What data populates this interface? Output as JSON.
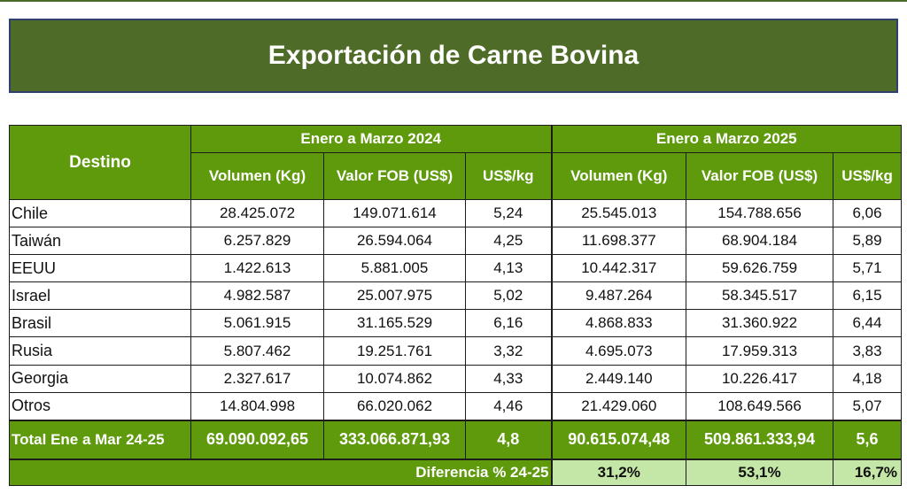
{
  "title": "Exportación de Carne Bovina",
  "headers": {
    "destino": "Destino",
    "period_2024": "Enero a Marzo 2024",
    "period_2025": "Enero a Marzo 2025",
    "vol_2024": "Volumen (Kg)",
    "fob_2024": "Valor FOB (US$)",
    "uskg_2024": "US$/kg",
    "vol_2025": "Volumen (Kg)",
    "fob_2025": "Valor FOB (US$)",
    "uskg_2025": "US$/kg"
  },
  "rows": [
    {
      "destino": "Chile",
      "vol24": "28.425.072",
      "fob24": "149.071.614",
      "uskg24": "5,24",
      "vol25": "25.545.013",
      "fob25": "154.788.656",
      "uskg25": "6,06"
    },
    {
      "destino": "Taiwán",
      "vol24": "6.257.829",
      "fob24": "26.594.064",
      "uskg24": "4,25",
      "vol25": "11.698.377",
      "fob25": "68.904.184",
      "uskg25": "5,89"
    },
    {
      "destino": "EEUU",
      "vol24": "1.422.613",
      "fob24": "5.881.005",
      "uskg24": "4,13",
      "vol25": "10.442.317",
      "fob25": "59.626.759",
      "uskg25": "5,71"
    },
    {
      "destino": "Israel",
      "vol24": "4.982.587",
      "fob24": "25.007.975",
      "uskg24": "5,02",
      "vol25": "9.487.264",
      "fob25": "58.345.517",
      "uskg25": "6,15"
    },
    {
      "destino": "Brasil",
      "vol24": "5.061.915",
      "fob24": "31.165.529",
      "uskg24": "6,16",
      "vol25": "4.868.833",
      "fob25": "31.360.922",
      "uskg25": "6,44"
    },
    {
      "destino": "Rusia",
      "vol24": "5.807.462",
      "fob24": "19.251.761",
      "uskg24": "3,32",
      "vol25": "4.695.073",
      "fob25": "17.959.313",
      "uskg25": "3,83"
    },
    {
      "destino": "Georgia",
      "vol24": "2.327.617",
      "fob24": "10.074.862",
      "uskg24": "4,33",
      "vol25": "2.449.140",
      "fob25": "10.226.417",
      "uskg25": "4,18"
    },
    {
      "destino": "Otros",
      "vol24": "14.804.998",
      "fob24": "66.020.062",
      "uskg24": "4,46",
      "vol25": "21.429.060",
      "fob25": "108.649.566",
      "uskg25": "5,07"
    }
  ],
  "total": {
    "label": "Total Ene a Mar 24-25",
    "vol24": "69.090.092,65",
    "fob24": "333.066.871,93",
    "uskg24": "4,8",
    "vol25": "90.615.074,48",
    "fob25": "509.861.333,94",
    "uskg25": "5,6"
  },
  "diff": {
    "label": "Diferencia % 24-25",
    "vol": "31,2%",
    "fob": "53,1%",
    "uskg": "16,7%"
  },
  "colors": {
    "banner": "#4f6b28",
    "header_green": "#5e9a0c",
    "diff_light": "#c4e6a6"
  }
}
